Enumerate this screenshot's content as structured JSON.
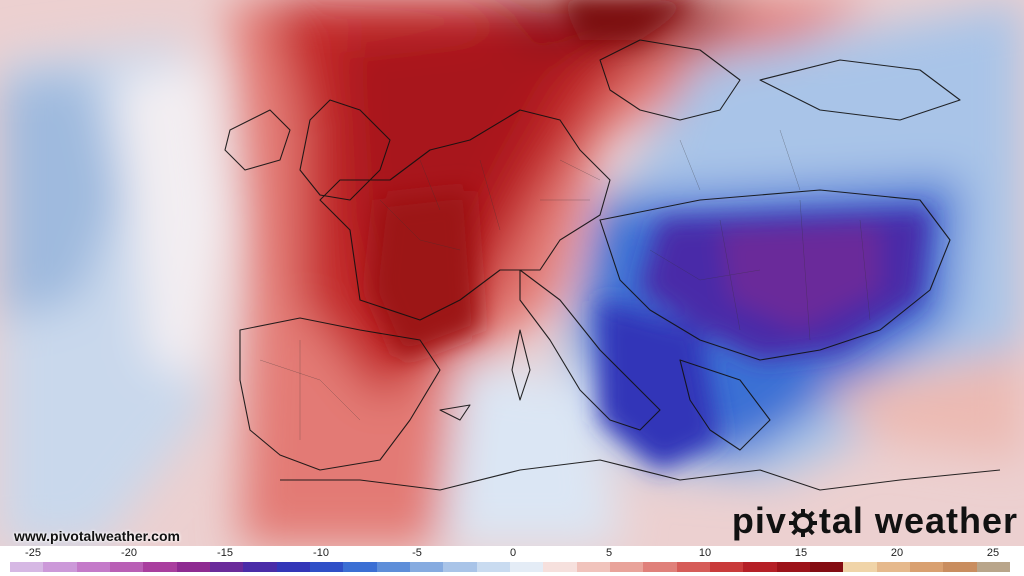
{
  "watermark": {
    "url": "www.pivotalweather.com",
    "brand_left": "piv",
    "brand_right": "tal weather"
  },
  "legend": {
    "ticks": [
      "-25",
      "-20",
      "-15",
      "-10",
      "-5",
      "0",
      "5",
      "10",
      "15",
      "20",
      "25"
    ],
    "colors": [
      "#d6b8e4",
      "#cc99d9",
      "#c47ac9",
      "#b95fb5",
      "#a93e9e",
      "#8e2a91",
      "#6a2a9a",
      "#4a2ca8",
      "#3336b8",
      "#2f4fc7",
      "#3b6fd4",
      "#5e8ed9",
      "#86abe0",
      "#a9c4e8",
      "#c9dbf0",
      "#e4ecf6",
      "#f6e0dd",
      "#f1c3bc",
      "#e9a39a",
      "#e0807a",
      "#d65c58",
      "#c93a3a",
      "#b51f26",
      "#9c1219",
      "#840c12",
      "#f0d4a8",
      "#e6b98c",
      "#d9a070",
      "#c98d5f",
      "#b9a58a"
    ]
  },
  "colors": {
    "warm": "#b51f26",
    "cold": "#4a2ca8"
  }
}
